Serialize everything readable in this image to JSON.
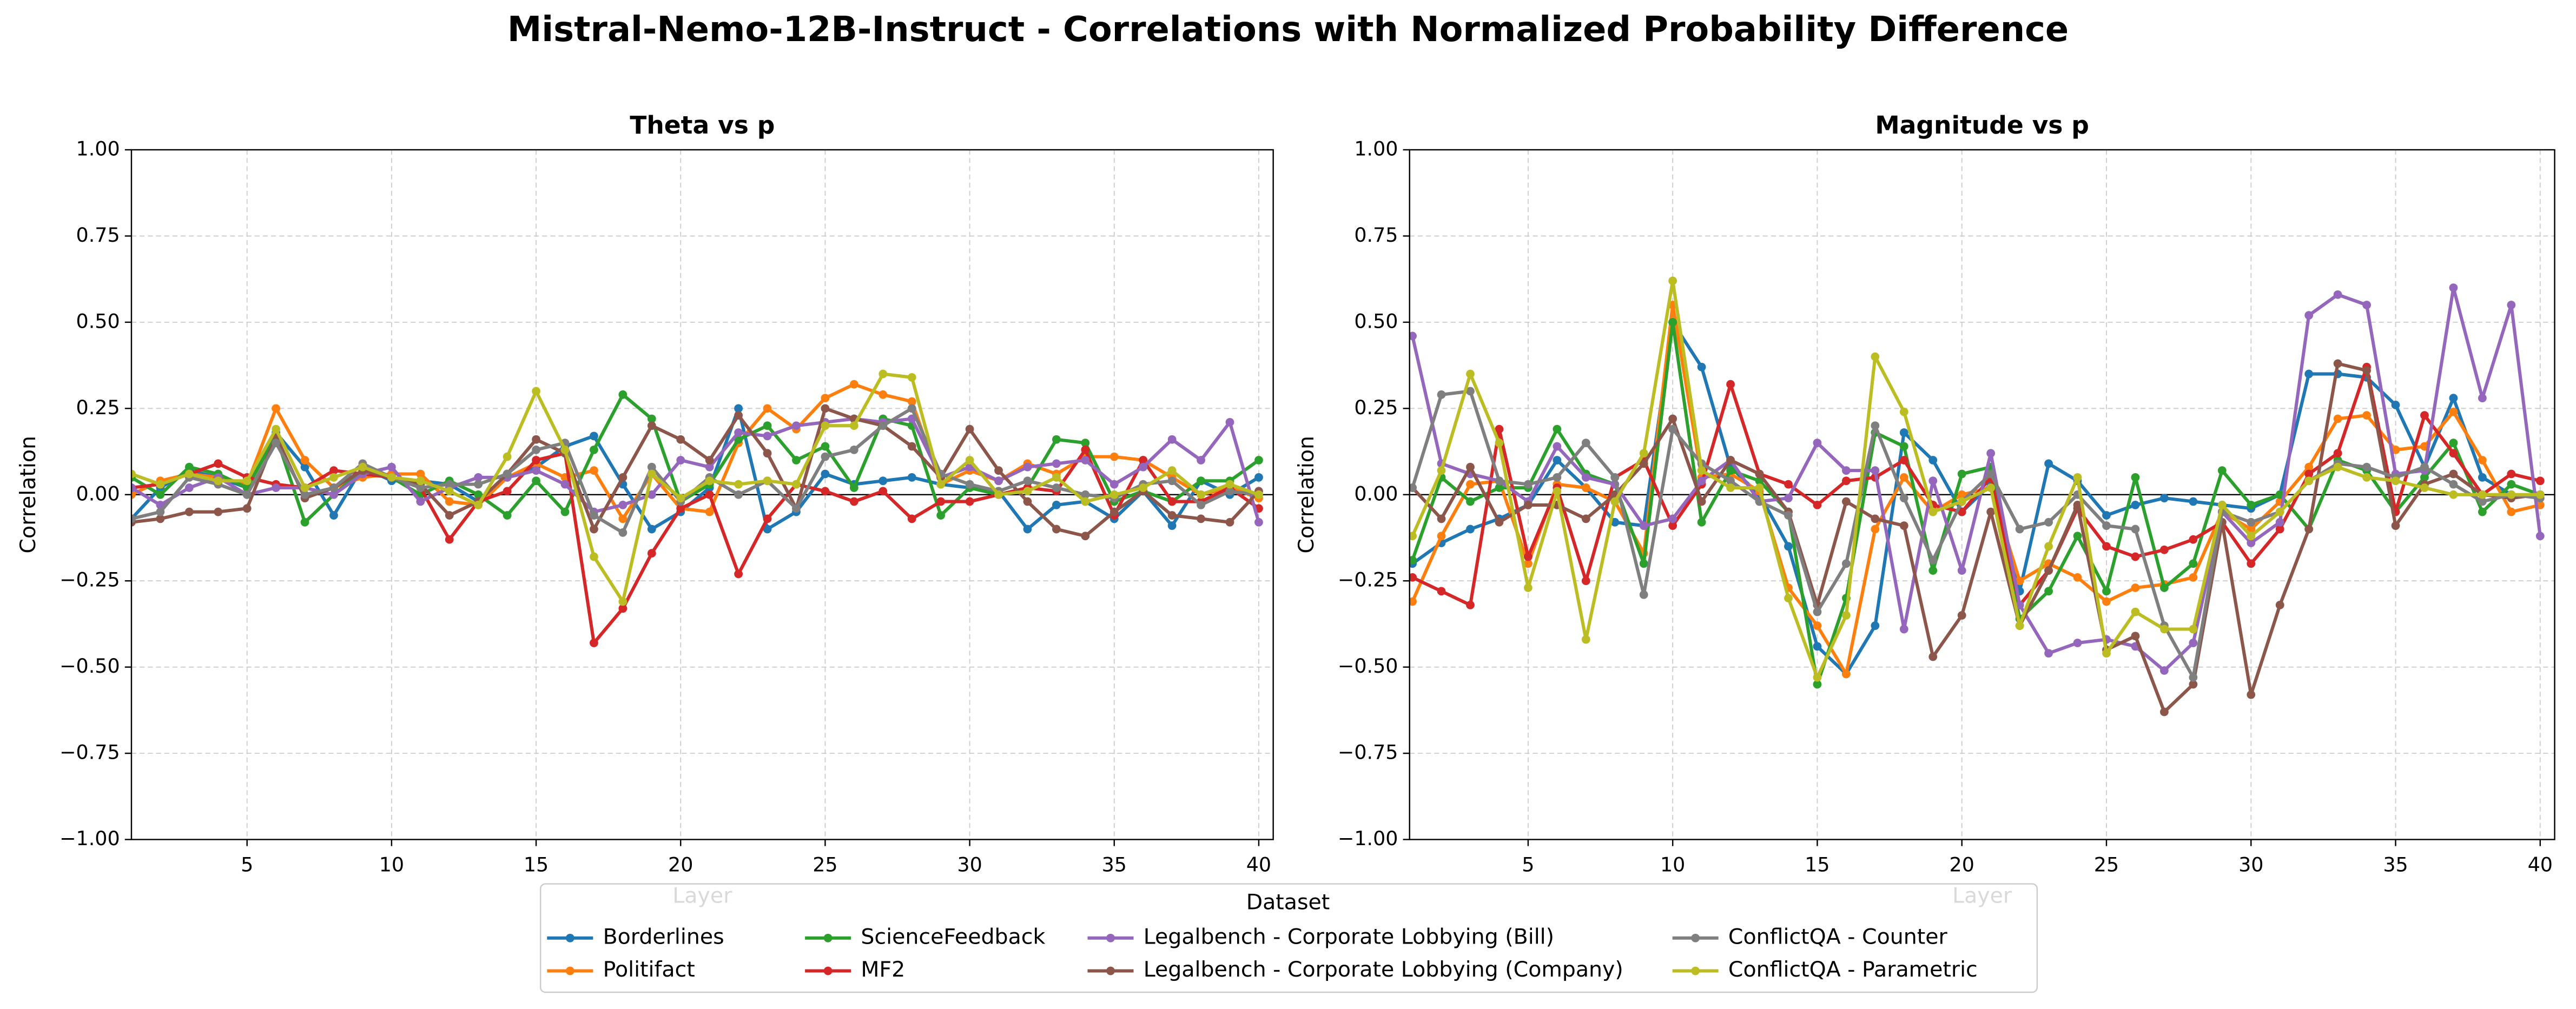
{
  "title": "Mistral-Nemo-12B-Instruct - Correlations with Normalized Probability Difference",
  "legend": {
    "title": "Dataset"
  },
  "chart_data": [
    {
      "type": "line",
      "title": "Theta vs p",
      "xlabel": "Layer",
      "ylabel": "Correlation",
      "grid": true,
      "x": [
        1,
        2,
        3,
        4,
        5,
        6,
        7,
        8,
        9,
        10,
        11,
        12,
        13,
        14,
        15,
        16,
        17,
        18,
        19,
        20,
        21,
        22,
        23,
        24,
        25,
        26,
        27,
        28,
        29,
        30,
        31,
        32,
        33,
        34,
        35,
        36,
        37,
        38,
        39,
        40
      ],
      "xlim": [
        1,
        40.5
      ],
      "xticks": [
        5,
        10,
        15,
        20,
        25,
        30,
        35,
        40
      ],
      "ylim": [
        -1,
        1
      ],
      "yticks": [
        {
          "value": -1,
          "label": "−1.00"
        },
        {
          "value": -0.75,
          "label": "−0.75"
        },
        {
          "value": -0.5,
          "label": "−0.50"
        },
        {
          "value": -0.25,
          "label": "−0.25"
        },
        {
          "value": 0,
          "label": "0.00"
        },
        {
          "value": 0.25,
          "label": "0.25"
        },
        {
          "value": 0.5,
          "label": "0.50"
        },
        {
          "value": 0.75,
          "label": "0.75"
        },
        {
          "value": 1,
          "label": "1.00"
        }
      ],
      "series": [
        {
          "name": "Borderlines",
          "color": "#1f77b4",
          "values": [
            -0.07,
            0.02,
            0.07,
            0.05,
            0.02,
            0.18,
            0.08,
            -0.06,
            0.08,
            0.04,
            0.04,
            0.03,
            -0.02,
            0.05,
            0.08,
            0.14,
            0.17,
            0.03,
            -0.1,
            -0.05,
            0.02,
            0.25,
            -0.1,
            -0.05,
            0.06,
            0.03,
            0.04,
            0.05,
            0.03,
            0.02,
            0.01,
            -0.1,
            -0.03,
            -0.02,
            -0.07,
            0.01,
            -0.09,
            0.04,
            0.0,
            0.05
          ]
        },
        {
          "name": "Politifact",
          "color": "#ff7f0e",
          "values": [
            0.0,
            0.04,
            0.06,
            0.05,
            0.03,
            0.25,
            0.1,
            0.02,
            0.05,
            0.06,
            0.06,
            -0.02,
            -0.03,
            0.05,
            0.09,
            0.05,
            0.07,
            -0.07,
            0.06,
            -0.04,
            -0.05,
            0.15,
            0.25,
            0.19,
            0.28,
            0.32,
            0.29,
            0.27,
            0.03,
            0.07,
            0.04,
            0.09,
            0.06,
            0.11,
            0.11,
            0.1,
            0.05,
            0.0,
            0.02,
            -0.01
          ]
        },
        {
          "name": "ScienceFeedback",
          "color": "#2ca02c",
          "values": [
            0.05,
            0.0,
            0.08,
            0.06,
            0.02,
            0.17,
            -0.08,
            0.0,
            0.07,
            0.05,
            0.0,
            0.04,
            0.0,
            -0.06,
            0.04,
            -0.05,
            0.13,
            0.29,
            0.22,
            -0.02,
            0.03,
            0.16,
            0.2,
            0.1,
            0.14,
            0.02,
            0.22,
            0.2,
            -0.06,
            0.02,
            0.0,
            0.02,
            0.16,
            0.15,
            -0.02,
            0.01,
            -0.02,
            0.04,
            0.04,
            0.1
          ]
        },
        {
          "name": "MF2",
          "color": "#d62728",
          "values": [
            0.02,
            0.03,
            0.06,
            0.09,
            0.05,
            0.03,
            0.02,
            0.07,
            0.06,
            0.05,
            0.02,
            -0.13,
            -0.02,
            0.01,
            0.1,
            0.12,
            -0.43,
            -0.33,
            -0.17,
            -0.04,
            0.0,
            -0.23,
            -0.07,
            0.03,
            0.01,
            -0.02,
            0.01,
            -0.07,
            -0.02,
            -0.02,
            0.0,
            0.02,
            0.01,
            0.13,
            -0.06,
            0.1,
            -0.02,
            -0.02,
            0.02,
            -0.04
          ]
        },
        {
          "name": "Legalbench - Corporate Lobbying (Bill)",
          "color": "#9467bd",
          "values": [
            0.02,
            -0.03,
            0.02,
            0.05,
            0.0,
            0.02,
            0.02,
            0.0,
            0.06,
            0.08,
            -0.02,
            0.02,
            0.05,
            0.05,
            0.07,
            0.03,
            -0.05,
            -0.03,
            0.0,
            0.1,
            0.08,
            0.18,
            0.17,
            0.2,
            0.21,
            0.22,
            0.21,
            0.22,
            0.05,
            0.08,
            0.04,
            0.08,
            0.09,
            0.1,
            0.03,
            0.08,
            0.16,
            0.1,
            0.21,
            -0.08
          ]
        },
        {
          "name": "Legalbench - Corporate Lobbying (Company)",
          "color": "#8c564b",
          "values": [
            -0.08,
            -0.07,
            -0.05,
            -0.05,
            -0.04,
            0.17,
            -0.01,
            0.02,
            0.07,
            0.05,
            0.03,
            -0.06,
            -0.02,
            0.06,
            0.16,
            0.12,
            -0.1,
            0.05,
            0.2,
            0.16,
            0.1,
            0.23,
            0.12,
            -0.04,
            0.25,
            0.22,
            0.2,
            0.14,
            0.05,
            0.19,
            0.07,
            -0.02,
            -0.1,
            -0.12,
            -0.05,
            0.01,
            -0.06,
            -0.07,
            -0.08,
            0.01
          ]
        },
        {
          "name": "ConflictQA - Counter",
          "color": "#7f7f7f",
          "values": [
            -0.07,
            -0.05,
            0.05,
            0.03,
            0.0,
            0.15,
            0.0,
            0.02,
            0.09,
            0.05,
            0.02,
            0.03,
            0.03,
            0.06,
            0.13,
            0.15,
            -0.06,
            -0.11,
            0.08,
            -0.02,
            0.05,
            0.0,
            0.04,
            -0.04,
            0.11,
            0.13,
            0.2,
            0.25,
            0.06,
            0.03,
            0.01,
            0.04,
            0.02,
            0.0,
            -0.01,
            0.03,
            0.04,
            -0.03,
            0.01,
            0.0
          ]
        },
        {
          "name": "ConflictQA - Parametric",
          "color": "#bcbd22",
          "values": [
            0.06,
            0.03,
            0.06,
            0.04,
            0.04,
            0.19,
            0.02,
            0.05,
            0.08,
            0.05,
            0.04,
            0.01,
            -0.03,
            0.11,
            0.3,
            0.13,
            -0.18,
            -0.31,
            0.06,
            -0.01,
            0.04,
            0.03,
            0.04,
            0.03,
            0.2,
            0.2,
            0.35,
            0.34,
            0.03,
            0.1,
            0.0,
            0.01,
            0.05,
            -0.02,
            0.0,
            0.02,
            0.07,
            0.0,
            0.03,
            0.0
          ]
        }
      ]
    },
    {
      "type": "line",
      "title": "Magnitude vs p",
      "xlabel": "Layer",
      "ylabel": "Correlation",
      "grid": true,
      "x": [
        1,
        2,
        3,
        4,
        5,
        6,
        7,
        8,
        9,
        10,
        11,
        12,
        13,
        14,
        15,
        16,
        17,
        18,
        19,
        20,
        21,
        22,
        23,
        24,
        25,
        26,
        27,
        28,
        29,
        30,
        31,
        32,
        33,
        34,
        35,
        36,
        37,
        38,
        39,
        40
      ],
      "xlim": [
        0.9,
        40.5
      ],
      "xticks": [
        5,
        10,
        15,
        20,
        25,
        30,
        35,
        40
      ],
      "ylim": [
        -1,
        1
      ],
      "yticks": [
        {
          "value": -1,
          "label": "−1.00"
        },
        {
          "value": -0.75,
          "label": "−0.75"
        },
        {
          "value": -0.5,
          "label": "−0.50"
        },
        {
          "value": -0.25,
          "label": "−0.25"
        },
        {
          "value": 0,
          "label": "0.00"
        },
        {
          "value": 0.25,
          "label": "0.25"
        },
        {
          "value": 0.5,
          "label": "0.50"
        },
        {
          "value": 0.75,
          "label": "0.75"
        },
        {
          "value": 1,
          "label": "1.00"
        }
      ],
      "series": [
        {
          "color": "#1f77b4",
          "values": [
            -0.2,
            -0.14,
            -0.1,
            -0.07,
            -0.03,
            0.1,
            0.02,
            -0.08,
            -0.09,
            0.5,
            0.37,
            0.08,
            0.0,
            -0.15,
            -0.44,
            -0.52,
            -0.38,
            0.18,
            0.1,
            -0.05,
            0.03,
            -0.28,
            0.09,
            0.04,
            -0.06,
            -0.03,
            -0.01,
            -0.02,
            -0.03,
            -0.04,
            0.0,
            0.35,
            0.35,
            0.34,
            0.26,
            0.08,
            0.28,
            0.05,
            0.0,
            -0.01
          ]
        },
        {
          "color": "#ff7f0e",
          "values": [
            -0.31,
            -0.12,
            0.03,
            0.04,
            -0.2,
            0.03,
            0.02,
            -0.02,
            -0.17,
            0.55,
            0.05,
            0.06,
            0.01,
            -0.27,
            -0.38,
            -0.52,
            -0.1,
            0.05,
            -0.05,
            0.0,
            0.02,
            -0.25,
            -0.2,
            -0.24,
            -0.31,
            -0.27,
            -0.26,
            -0.24,
            -0.05,
            -0.1,
            -0.02,
            0.08,
            0.22,
            0.23,
            0.13,
            0.14,
            0.24,
            0.1,
            -0.05,
            -0.03
          ]
        },
        {
          "color": "#2ca02c",
          "values": [
            -0.19,
            0.05,
            -0.02,
            0.02,
            0.02,
            0.19,
            0.06,
            0.03,
            -0.2,
            0.5,
            -0.08,
            0.07,
            0.04,
            -0.05,
            -0.55,
            -0.3,
            0.18,
            0.14,
            -0.22,
            0.06,
            0.08,
            -0.36,
            -0.28,
            -0.12,
            -0.28,
            0.05,
            -0.27,
            -0.2,
            0.07,
            -0.03,
            0.0,
            -0.1,
            0.1,
            0.07,
            -0.05,
            0.05,
            0.15,
            -0.05,
            0.03,
            0.0
          ]
        },
        {
          "color": "#d62728",
          "values": [
            -0.24,
            -0.28,
            -0.32,
            0.19,
            -0.18,
            0.02,
            -0.25,
            0.05,
            0.1,
            -0.09,
            0.03,
            0.32,
            0.06,
            0.03,
            -0.03,
            0.04,
            0.05,
            0.1,
            -0.03,
            -0.05,
            0.05,
            -0.32,
            -0.22,
            -0.04,
            -0.15,
            -0.18,
            -0.16,
            -0.13,
            -0.08,
            -0.2,
            -0.1,
            0.06,
            0.12,
            0.37,
            -0.05,
            0.23,
            0.12,
            0.0,
            0.06,
            0.04
          ]
        },
        {
          "color": "#9467bd",
          "values": [
            0.46,
            0.09,
            0.06,
            0.04,
            -0.02,
            0.14,
            0.05,
            0.03,
            -0.09,
            -0.07,
            0.04,
            0.1,
            -0.02,
            -0.01,
            0.15,
            0.07,
            0.07,
            -0.39,
            0.04,
            -0.22,
            0.12,
            -0.32,
            -0.46,
            -0.43,
            -0.42,
            -0.44,
            -0.51,
            -0.43,
            -0.05,
            -0.14,
            -0.08,
            0.52,
            0.58,
            0.55,
            0.06,
            0.07,
            0.6,
            0.28,
            0.55,
            -0.12
          ]
        },
        {
          "color": "#8c564b",
          "values": [
            0.02,
            -0.07,
            0.08,
            -0.08,
            -0.03,
            -0.03,
            -0.07,
            0.0,
            0.09,
            0.22,
            -0.02,
            0.1,
            0.06,
            -0.05,
            -0.32,
            -0.02,
            -0.07,
            -0.09,
            -0.47,
            -0.35,
            -0.05,
            -0.38,
            -0.22,
            -0.03,
            -0.45,
            -0.41,
            -0.63,
            -0.55,
            -0.08,
            -0.58,
            -0.32,
            -0.1,
            0.38,
            0.36,
            -0.09,
            0.03,
            0.06,
            0.0,
            -0.01,
            0.0
          ]
        },
        {
          "color": "#7f7f7f",
          "values": [
            0.02,
            0.29,
            0.3,
            0.04,
            0.03,
            0.05,
            0.15,
            0.05,
            -0.29,
            0.19,
            0.09,
            0.04,
            -0.02,
            -0.06,
            -0.34,
            -0.2,
            0.2,
            -0.01,
            -0.19,
            -0.02,
            0.06,
            -0.1,
            -0.08,
            0.0,
            -0.09,
            -0.1,
            -0.38,
            -0.53,
            -0.05,
            -0.08,
            -0.05,
            0.04,
            0.09,
            0.08,
            0.05,
            0.08,
            0.03,
            -0.02,
            0.0,
            -0.01
          ]
        },
        {
          "color": "#bcbd22",
          "values": [
            -0.12,
            0.07,
            0.35,
            0.15,
            -0.27,
            0.01,
            -0.42,
            -0.02,
            0.12,
            0.62,
            0.07,
            0.02,
            0.02,
            -0.3,
            -0.53,
            -0.35,
            0.4,
            0.24,
            -0.05,
            -0.02,
            0.02,
            -0.38,
            -0.15,
            0.05,
            -0.46,
            -0.34,
            -0.39,
            -0.39,
            -0.03,
            -0.12,
            -0.05,
            0.04,
            0.08,
            0.05,
            0.04,
            0.02,
            0.0,
            0.0,
            0.0,
            0.0
          ]
        }
      ]
    }
  ]
}
